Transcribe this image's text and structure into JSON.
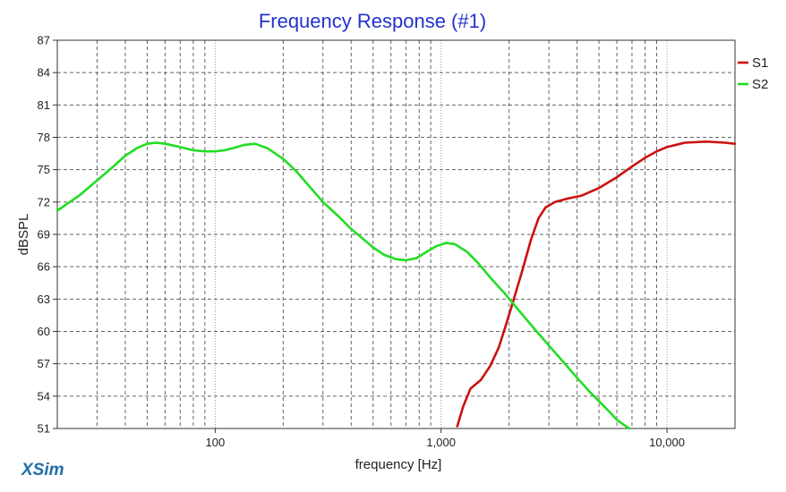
{
  "chart_data": {
    "type": "line",
    "title": "Frequency Response (#1)",
    "xlabel": "frequency [Hz]",
    "ylabel": "dBSPL",
    "xscale": "log",
    "xlim": [
      20,
      20000
    ],
    "ylim": [
      51,
      87
    ],
    "x_ticks": [
      100,
      1000,
      10000
    ],
    "x_tick_labels": [
      "100",
      "1,000",
      "10,000"
    ],
    "y_ticks": [
      51,
      54,
      57,
      60,
      63,
      66,
      69,
      72,
      75,
      78,
      81,
      84,
      87
    ],
    "grid": true,
    "legend_position": "top-right",
    "series": [
      {
        "name": "S1",
        "color": "#cc1111",
        "points": [
          [
            1180,
            51.2
          ],
          [
            1250,
            53.0
          ],
          [
            1350,
            54.7
          ],
          [
            1500,
            55.5
          ],
          [
            1650,
            56.8
          ],
          [
            1800,
            58.5
          ],
          [
            1950,
            60.8
          ],
          [
            2100,
            63.0
          ],
          [
            2300,
            65.8
          ],
          [
            2500,
            68.5
          ],
          [
            2700,
            70.5
          ],
          [
            2900,
            71.5
          ],
          [
            3200,
            72.0
          ],
          [
            3600,
            72.3
          ],
          [
            4200,
            72.6
          ],
          [
            5000,
            73.3
          ],
          [
            6000,
            74.3
          ],
          [
            7000,
            75.3
          ],
          [
            8000,
            76.1
          ],
          [
            9000,
            76.7
          ],
          [
            10000,
            77.1
          ],
          [
            12000,
            77.5
          ],
          [
            15000,
            77.6
          ],
          [
            18000,
            77.5
          ],
          [
            20000,
            77.4
          ]
        ]
      },
      {
        "name": "S2",
        "color": "#22dd22",
        "points": [
          [
            20,
            71.2
          ],
          [
            25,
            72.6
          ],
          [
            30,
            74.0
          ],
          [
            35,
            75.2
          ],
          [
            40,
            76.3
          ],
          [
            45,
            77.0
          ],
          [
            50,
            77.4
          ],
          [
            55,
            77.5
          ],
          [
            60,
            77.4
          ],
          [
            70,
            77.1
          ],
          [
            80,
            76.8
          ],
          [
            90,
            76.7
          ],
          [
            100,
            76.7
          ],
          [
            110,
            76.8
          ],
          [
            120,
            77.0
          ],
          [
            135,
            77.3
          ],
          [
            150,
            77.4
          ],
          [
            170,
            77.0
          ],
          [
            200,
            76.0
          ],
          [
            230,
            74.8
          ],
          [
            260,
            73.5
          ],
          [
            300,
            72.0
          ],
          [
            350,
            70.7
          ],
          [
            400,
            69.5
          ],
          [
            450,
            68.6
          ],
          [
            500,
            67.8
          ],
          [
            560,
            67.1
          ],
          [
            630,
            66.7
          ],
          [
            700,
            66.6
          ],
          [
            780,
            66.8
          ],
          [
            850,
            67.3
          ],
          [
            950,
            67.9
          ],
          [
            1050,
            68.2
          ],
          [
            1150,
            68.1
          ],
          [
            1300,
            67.4
          ],
          [
            1450,
            66.4
          ],
          [
            1650,
            65.0
          ],
          [
            1900,
            63.6
          ],
          [
            2200,
            62.0
          ],
          [
            2600,
            60.2
          ],
          [
            3000,
            58.7
          ],
          [
            3500,
            57.1
          ],
          [
            4000,
            55.7
          ],
          [
            4600,
            54.3
          ],
          [
            5300,
            53.0
          ],
          [
            6000,
            51.8
          ],
          [
            6800,
            51.0
          ]
        ]
      }
    ]
  },
  "branding": {
    "logo": "XSim"
  }
}
